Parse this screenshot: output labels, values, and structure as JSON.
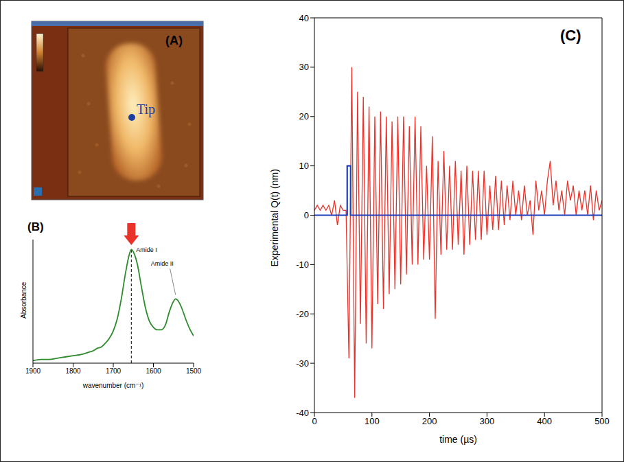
{
  "chart_data": [
    {
      "type": "image",
      "panel": "(A)",
      "annotations": [
        {
          "text": "Tip"
        }
      ]
    },
    {
      "type": "line",
      "panel": "(B)",
      "x_label": "wavenumber (cm⁻¹)",
      "y_label": "Absorbance",
      "x": [
        1900,
        1880,
        1860,
        1840,
        1820,
        1800,
        1780,
        1760,
        1750,
        1740,
        1730,
        1720,
        1710,
        1700,
        1690,
        1680,
        1670,
        1660,
        1655,
        1650,
        1640,
        1630,
        1620,
        1610,
        1600,
        1590,
        1580,
        1570,
        1560,
        1550,
        1545,
        1540,
        1530,
        1520,
        1510,
        1500
      ],
      "values": [
        0.02,
        0.03,
        0.03,
        0.04,
        0.05,
        0.06,
        0.07,
        0.09,
        0.1,
        0.12,
        0.13,
        0.16,
        0.2,
        0.26,
        0.36,
        0.52,
        0.72,
        0.88,
        0.92,
        0.9,
        0.8,
        0.62,
        0.45,
        0.34,
        0.29,
        0.27,
        0.27,
        0.31,
        0.42,
        0.5,
        0.52,
        0.51,
        0.45,
        0.36,
        0.28,
        0.22
      ],
      "color": "#2e8b2e",
      "xlim": [
        1900,
        1500
      ],
      "xticks": [
        1900,
        1800,
        1700,
        1600,
        1500
      ],
      "ylim": [
        0,
        1
      ],
      "tick_labels": "x",
      "annotations": [
        {
          "text": "Amide I",
          "x": 1655,
          "y": 0.92
        },
        {
          "text": "Amide II",
          "x": 1545,
          "y": 0.52
        }
      ]
    },
    {
      "type": "line",
      "panel": "(C)",
      "x_label": "time (µs)",
      "y_label": "Experimental Q(t) (nm)",
      "xlim": [
        0,
        500
      ],
      "xticks": [
        0,
        100,
        200,
        300,
        400,
        500
      ],
      "ylim": [
        -40,
        40
      ],
      "yticks": [
        -40,
        -30,
        -20,
        -10,
        0,
        10,
        20,
        30,
        40
      ],
      "series": [
        {
          "color": "#e8322a",
          "x": [
            0,
            5,
            10,
            15,
            20,
            25,
            30,
            35,
            40,
            45,
            50,
            55,
            60,
            65,
            70,
            75,
            80,
            85,
            90,
            95,
            100,
            105,
            110,
            115,
            120,
            125,
            130,
            135,
            140,
            145,
            150,
            155,
            160,
            165,
            170,
            175,
            180,
            185,
            190,
            195,
            200,
            205,
            210,
            215,
            220,
            225,
            230,
            235,
            240,
            245,
            250,
            255,
            260,
            265,
            270,
            275,
            280,
            285,
            290,
            295,
            300,
            305,
            310,
            315,
            320,
            325,
            330,
            335,
            340,
            345,
            350,
            355,
            360,
            365,
            370,
            375,
            380,
            385,
            390,
            395,
            400,
            405,
            410,
            415,
            420,
            425,
            430,
            435,
            440,
            445,
            450,
            455,
            460,
            465,
            470,
            475,
            480,
            485,
            490,
            495,
            500
          ],
          "values": [
            1,
            2,
            1,
            2,
            1,
            2,
            0,
            3,
            -2,
            2,
            1,
            1,
            -29,
            30,
            -37,
            25,
            -22,
            24,
            -26,
            22,
            -27,
            20,
            -18,
            21,
            -19,
            20,
            -16,
            19,
            -15,
            20,
            -14,
            20,
            -12,
            18,
            -10,
            20,
            -10,
            18,
            -9,
            10,
            -9,
            16,
            -21,
            11,
            -8,
            13,
            -7,
            10,
            -7,
            11,
            -6,
            9,
            -8,
            10,
            -6,
            9,
            -5,
            9,
            -5,
            9,
            -4,
            6,
            -3,
            8,
            -3,
            7,
            -2,
            6,
            -1,
            7,
            0,
            5,
            -1,
            6,
            0,
            3,
            -4,
            7,
            1,
            5,
            0,
            7,
            11,
            2,
            7,
            1,
            5,
            0,
            7,
            3,
            6,
            0,
            5,
            1,
            5,
            0,
            6,
            -1,
            5,
            1,
            3
          ]
        },
        {
          "color": "#1f3fbf",
          "x": [
            0,
            57,
            57,
            63,
            63,
            500
          ],
          "values": [
            0,
            0,
            10,
            10,
            0,
            0
          ]
        }
      ]
    }
  ]
}
